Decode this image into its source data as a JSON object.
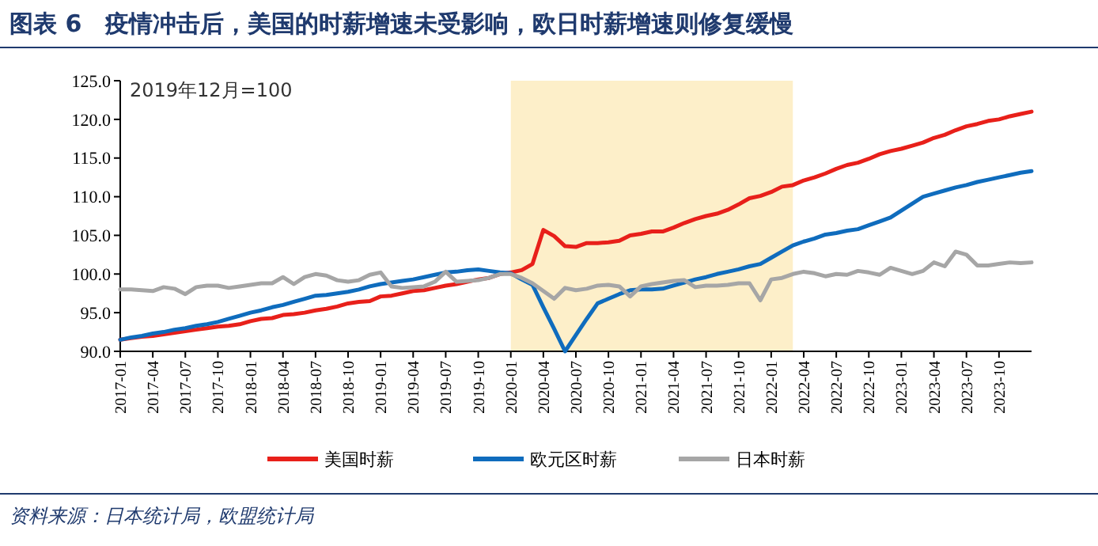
{
  "chart_data": {
    "type": "line",
    "title": "图表 6　疫情冲击后，美国的时薪增速未受影响，欧日时薪增速则修复缓慢",
    "x": [
      "2017-01",
      "2017-02",
      "2017-03",
      "2017-04",
      "2017-05",
      "2017-06",
      "2017-07",
      "2017-08",
      "2017-09",
      "2017-10",
      "2017-11",
      "2017-12",
      "2018-01",
      "2018-02",
      "2018-03",
      "2018-04",
      "2018-05",
      "2018-06",
      "2018-07",
      "2018-08",
      "2018-09",
      "2018-10",
      "2018-11",
      "2018-12",
      "2019-01",
      "2019-02",
      "2019-03",
      "2019-04",
      "2019-05",
      "2019-06",
      "2019-07",
      "2019-08",
      "2019-09",
      "2019-10",
      "2019-11",
      "2019-12",
      "2020-01",
      "2020-02",
      "2020-03",
      "2020-04",
      "2020-05",
      "2020-06",
      "2020-07",
      "2020-08",
      "2020-09",
      "2020-10",
      "2020-11",
      "2020-12",
      "2021-01",
      "2021-02",
      "2021-03",
      "2021-04",
      "2021-05",
      "2021-06",
      "2021-07",
      "2021-08",
      "2021-09",
      "2021-10",
      "2021-11",
      "2021-12",
      "2022-01",
      "2022-02",
      "2022-03",
      "2022-04",
      "2022-05",
      "2022-06",
      "2022-07",
      "2022-08",
      "2022-09",
      "2022-10",
      "2022-11",
      "2022-12",
      "2023-01",
      "2023-02",
      "2023-03",
      "2023-04",
      "2023-05",
      "2023-06",
      "2023-07",
      "2023-08",
      "2023-09",
      "2023-10",
      "2023-11",
      "2023-12",
      "2024-01"
    ],
    "series": [
      {
        "name": "美国时薪",
        "color": "#e8201a",
        "values": [
          91.5,
          91.7,
          91.9,
          92.0,
          92.2,
          92.4,
          92.6,
          92.8,
          93.0,
          93.2,
          93.3,
          93.5,
          93.9,
          94.2,
          94.3,
          94.7,
          94.8,
          95.0,
          95.3,
          95.5,
          95.8,
          96.2,
          96.4,
          96.5,
          97.1,
          97.2,
          97.5,
          97.8,
          97.9,
          98.2,
          98.5,
          98.7,
          99.0,
          99.3,
          99.5,
          100.0,
          100.2,
          100.5,
          101.3,
          105.7,
          104.9,
          103.6,
          103.5,
          104.0,
          104.0,
          104.1,
          104.3,
          105.0,
          105.2,
          105.5,
          105.5,
          106.0,
          106.6,
          107.1,
          107.5,
          107.8,
          108.3,
          109.0,
          109.8,
          110.1,
          110.6,
          111.3,
          111.5,
          112.1,
          112.5,
          113.0,
          113.6,
          114.1,
          114.4,
          114.9,
          115.5,
          115.9,
          116.2,
          116.6,
          117.0,
          117.6,
          118.0,
          118.6,
          119.1,
          119.4,
          119.8,
          120.0,
          120.4,
          120.7,
          121.0
        ]
      },
      {
        "name": "欧元区时薪",
        "color": "#0f6cbd",
        "values": [
          91.5,
          91.8,
          92.0,
          92.3,
          92.5,
          92.8,
          93.0,
          93.3,
          93.5,
          93.8,
          94.2,
          94.6,
          95.0,
          95.3,
          95.7,
          96.0,
          96.4,
          96.8,
          97.2,
          97.3,
          97.5,
          97.7,
          98.0,
          98.4,
          98.7,
          98.9,
          99.1,
          99.3,
          99.6,
          99.9,
          100.2,
          100.3,
          100.5,
          100.6,
          100.4,
          100.2,
          100.1,
          99.3,
          98.6,
          95.7,
          92.9,
          90.0,
          92.1,
          94.2,
          96.2,
          96.8,
          97.4,
          97.9,
          98.0,
          98.0,
          98.1,
          98.5,
          98.9,
          99.3,
          99.6,
          100.0,
          100.3,
          100.6,
          101.0,
          101.3,
          102.1,
          102.9,
          103.7,
          104.2,
          104.6,
          105.1,
          105.3,
          105.6,
          105.8,
          106.3,
          106.8,
          107.3,
          108.2,
          109.1,
          110.0,
          110.4,
          110.8,
          111.2,
          111.5,
          111.9,
          112.2,
          112.5,
          112.8,
          113.1,
          113.3
        ]
      },
      {
        "name": "日本时薪",
        "color": "#a6a6a6",
        "values": [
          98.0,
          98.0,
          97.9,
          97.8,
          98.3,
          98.1,
          97.4,
          98.3,
          98.5,
          98.5,
          98.2,
          98.4,
          98.6,
          98.8,
          98.8,
          99.6,
          98.7,
          99.6,
          100.0,
          99.8,
          99.2,
          99.0,
          99.2,
          99.9,
          100.2,
          98.4,
          98.2,
          98.3,
          98.4,
          99.0,
          100.3,
          99.0,
          99.1,
          99.2,
          99.5,
          100.0,
          100.0,
          99.5,
          98.8,
          97.8,
          96.8,
          98.2,
          97.9,
          98.1,
          98.5,
          98.6,
          98.4,
          97.1,
          98.4,
          98.7,
          98.9,
          99.1,
          99.2,
          98.3,
          98.5,
          98.5,
          98.6,
          98.8,
          98.8,
          96.6,
          99.3,
          99.5,
          100.0,
          100.3,
          100.1,
          99.7,
          100.0,
          99.9,
          100.4,
          100.2,
          99.9,
          100.8,
          100.4,
          100.0,
          100.4,
          101.5,
          101.0,
          102.9,
          102.5,
          101.1,
          101.1,
          101.3,
          101.5,
          101.4,
          101.5
        ]
      }
    ],
    "xlim": [
      "2017-01",
      "2024-01"
    ],
    "xticks": [
      "2017-01",
      "2017-04",
      "2017-07",
      "2017-10",
      "2018-01",
      "2018-04",
      "2018-07",
      "2018-10",
      "2019-01",
      "2019-04",
      "2019-07",
      "2019-10",
      "2020-01",
      "2020-04",
      "2020-07",
      "2020-10",
      "2021-01",
      "2021-04",
      "2021-07",
      "2021-10",
      "2022-01",
      "2022-04",
      "2022-07",
      "2022-10",
      "2023-01",
      "2023-04",
      "2023-07",
      "2023-10"
    ],
    "ylim": [
      90,
      125
    ],
    "yticks": [
      {
        "value": 90,
        "label": "90.0"
      },
      {
        "value": 95,
        "label": "95.0"
      },
      {
        "value": 100,
        "label": "100.0"
      },
      {
        "value": 105,
        "label": "105.0"
      },
      {
        "value": 110,
        "label": "110.0"
      },
      {
        "value": 115,
        "label": "115.0"
      },
      {
        "value": 120,
        "label": "120.0"
      },
      {
        "value": 125,
        "label": "125.0"
      }
    ],
    "bands": [
      {
        "axis": "x",
        "from": "2020-01",
        "to": "2022-03",
        "color": "#fdefc9"
      }
    ],
    "annotations": [
      "2019年12月=100",
      "资料来源：日本统计局，欧盟统计局"
    ],
    "legend": "bottom",
    "grid": false,
    "marker": "none",
    "line_style": "solid"
  }
}
